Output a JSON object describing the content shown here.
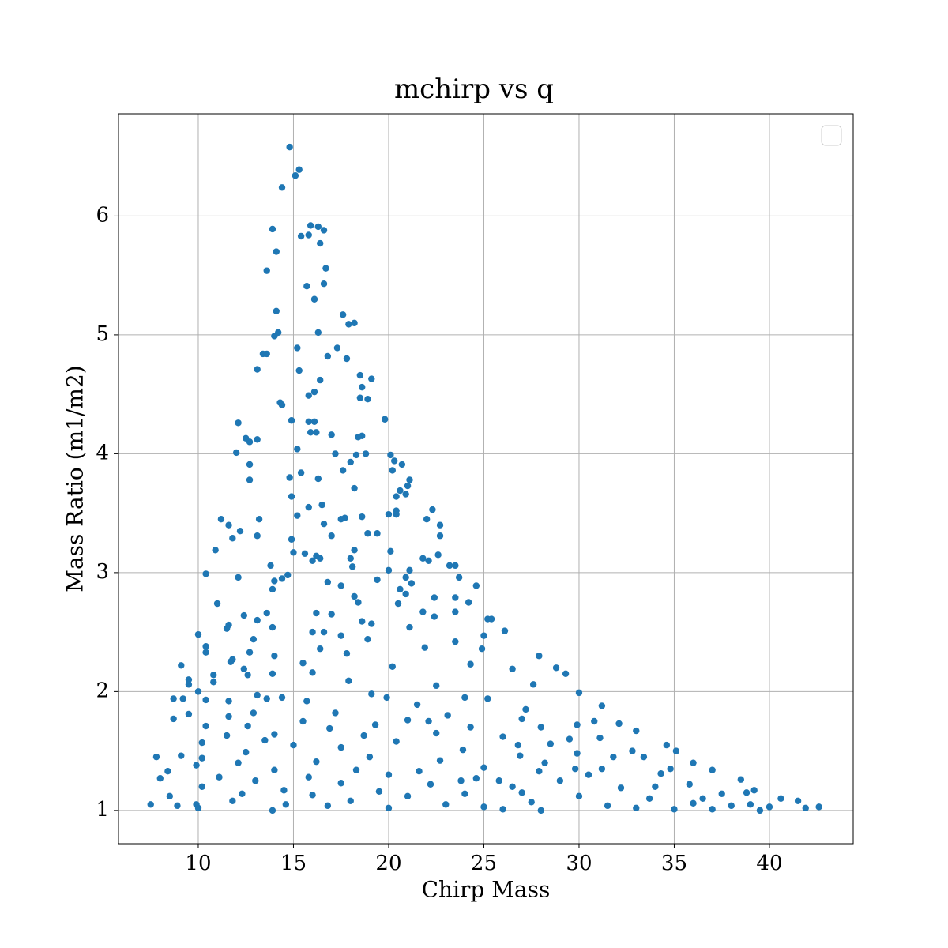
{
  "chart_data": {
    "type": "scatter",
    "title": "mchirp vs q",
    "xlabel": "Chirp Mass",
    "ylabel": "Mass Ratio (m1/m2)",
    "color": "#1f77b4",
    "grid": true,
    "xlim": [
      5.81,
      44.4
    ],
    "ylim": [
      0.72,
      6.86
    ],
    "xticks": [
      10,
      15,
      20,
      25,
      30,
      35,
      40
    ],
    "yticks": [
      1,
      2,
      3,
      4,
      5,
      6
    ],
    "x": [
      14.8,
      15.3,
      15.1,
      14.4,
      13.9,
      15.9,
      16.3,
      16.6,
      15.4,
      15.8,
      16.4,
      14.1,
      16.7,
      13.6,
      16.6,
      15.7,
      16.1,
      14.1,
      17.6,
      18.2,
      17.9,
      16.3,
      14.2,
      14.0,
      15.2,
      17.3,
      17.8,
      16.8,
      13.4,
      13.6,
      13.1,
      15.3,
      18.5,
      19.1,
      16.4,
      18.6,
      16.1,
      15.8,
      18.5,
      18.9,
      14.3,
      14.4,
      19.8,
      14.9,
      15.8,
      16.1,
      12.1,
      16.2,
      15.9,
      17.0,
      18.6,
      18.4,
      12.5,
      13.1,
      12.7,
      12.0,
      17.2,
      18.3,
      18.8,
      15.2,
      20.1,
      20.3,
      18.0,
      20.7,
      12.7,
      20.2,
      15.4,
      17.6,
      14.8,
      16.3,
      12.7,
      21.1,
      21.0,
      18.2,
      20.6,
      20.9,
      14.9,
      20.4,
      16.5,
      22.3,
      15.8,
      20.4,
      17.7,
      17.5,
      18.6,
      20.0,
      20.4,
      13.2,
      22.0,
      11.2,
      11.6,
      22.7,
      16.6,
      15.2,
      12.2,
      18.9,
      19.4,
      22.7,
      17.0,
      11.8,
      13.1,
      14.9,
      18.2,
      10.9,
      20.1,
      15.0,
      15.6,
      16.2,
      21.8,
      22.1,
      16.4,
      18.0,
      16.0,
      22.6,
      18.1,
      20.0,
      21.1,
      13.8,
      23.2,
      23.5,
      10.4,
      20.9,
      14.7,
      23.7,
      12.1,
      14.0,
      19.4,
      16.8,
      21.2,
      17.5,
      24.6,
      14.4,
      20.6,
      13.9,
      20.9,
      18.2,
      22.4,
      23.5,
      24.2,
      18.4,
      20.5,
      13.6,
      23.5,
      16.2,
      21.8,
      11.0,
      17.0,
      12.4,
      18.6,
      25.2,
      25.4,
      13.1,
      22.4,
      19.1,
      11.6,
      13.9,
      11.5,
      16.0,
      26.1,
      21.1,
      16.6,
      17.5,
      10.0,
      25.0,
      12.9,
      18.9,
      23.5,
      21.9,
      10.4,
      10.4,
      24.9,
      16.4,
      12.7,
      17.8,
      14.0,
      27.9,
      11.8,
      11.7,
      15.5,
      24.3,
      9.1,
      20.2,
      12.4,
      26.5,
      28.8,
      13.9,
      16.0,
      10.8,
      12.6,
      9.5,
      17.9,
      9.5,
      10.8,
      22.5,
      27.6,
      29.3,
      19.1,
      10.0,
      13.1,
      30.0,
      13.6,
      8.7,
      9.2,
      14.4,
      19.9,
      10.4,
      25.2,
      15.7,
      11.6,
      21.5,
      31.2,
      9.5,
      12.9,
      17.2,
      23.1,
      8.7,
      11.6,
      21.0,
      27.0,
      32.1,
      15.5,
      19.3,
      10.4,
      29.9,
      12.6,
      16.9,
      22.1,
      24.3,
      33.0,
      14.0,
      11.5,
      18.7,
      26.0,
      31.1,
      13.5,
      20.4,
      28.5,
      34.6,
      10.2,
      15.0,
      17.5,
      23.9,
      35.1,
      12.5,
      29.9,
      19.0,
      26.9,
      9.1,
      7.8,
      10.2,
      22.7,
      33.4,
      16.2,
      36.0,
      12.1,
      9.9,
      25.0,
      31.2,
      14.0,
      18.3,
      21.6,
      27.9,
      37.0,
      8.4,
      20.0,
      34.3,
      11.1,
      15.8,
      24.6,
      38.5,
      8.0,
      13.0,
      29.0,
      17.5,
      22.2,
      35.8,
      10.2,
      26.5,
      32.2,
      39.2,
      14.5,
      19.5,
      12.3,
      24.0,
      37.5,
      16.0,
      30.0,
      8.5,
      21.0,
      33.7,
      40.6,
      11.8,
      18.0,
      27.5,
      36.0,
      41.5,
      9.9,
      14.6,
      23.0,
      31.5,
      38.0,
      7.5,
      16.8,
      25.0,
      40.0,
      42.6,
      10.0,
      13.9,
      20.0,
      28.0,
      35.0,
      41.9,
      8.9,
      26.0,
      33.0,
      37.0,
      39.5,
      26.8,
      28.2,
      29.5,
      30.5,
      32.8,
      34.0,
      36.5,
      38.8,
      27.2,
      30.8,
      24.0,
      25.8,
      28.0,
      31.8,
      34.8,
      22.5,
      23.8,
      27.0,
      29.8,
      39.0
    ],
    "y": [
      6.58,
      6.39,
      6.34,
      6.24,
      5.89,
      5.92,
      5.91,
      5.88,
      5.83,
      5.84,
      5.77,
      5.7,
      5.56,
      5.54,
      5.43,
      5.41,
      5.3,
      5.2,
      5.17,
      5.1,
      5.09,
      5.02,
      5.02,
      4.99,
      4.89,
      4.89,
      4.8,
      4.82,
      4.84,
      4.84,
      4.71,
      4.7,
      4.66,
      4.63,
      4.62,
      4.56,
      4.52,
      4.49,
      4.47,
      4.46,
      4.43,
      4.41,
      4.29,
      4.28,
      4.27,
      4.27,
      4.26,
      4.18,
      4.18,
      4.16,
      4.15,
      4.14,
      4.13,
      4.12,
      4.1,
      4.01,
      4.0,
      3.99,
      4.0,
      4.04,
      3.99,
      3.94,
      3.93,
      3.91,
      3.91,
      3.86,
      3.84,
      3.86,
      3.8,
      3.79,
      3.78,
      3.78,
      3.73,
      3.71,
      3.69,
      3.66,
      3.64,
      3.64,
      3.57,
      3.53,
      3.55,
      3.52,
      3.46,
      3.45,
      3.47,
      3.49,
      3.49,
      3.45,
      3.45,
      3.45,
      3.4,
      3.4,
      3.41,
      3.48,
      3.35,
      3.33,
      3.33,
      3.31,
      3.31,
      3.29,
      3.31,
      3.28,
      3.19,
      3.19,
      3.18,
      3.17,
      3.16,
      3.14,
      3.12,
      3.1,
      3.12,
      3.12,
      3.1,
      3.15,
      3.05,
      3.02,
      3.02,
      3.06,
      3.06,
      3.06,
      2.99,
      2.96,
      2.98,
      2.96,
      2.96,
      2.93,
      2.94,
      2.92,
      2.91,
      2.89,
      2.89,
      2.95,
      2.86,
      2.86,
      2.82,
      2.8,
      2.79,
      2.79,
      2.75,
      2.75,
      2.74,
      2.66,
      2.67,
      2.66,
      2.67,
      2.74,
      2.65,
      2.64,
      2.59,
      2.61,
      2.61,
      2.6,
      2.63,
      2.57,
      2.56,
      2.54,
      2.53,
      2.5,
      2.51,
      2.54,
      2.5,
      2.47,
      2.48,
      2.47,
      2.44,
      2.44,
      2.42,
      2.37,
      2.38,
      2.33,
      2.36,
      2.36,
      2.33,
      2.32,
      2.3,
      2.3,
      2.27,
      2.25,
      2.24,
      2.23,
      2.22,
      2.21,
      2.19,
      2.19,
      2.2,
      2.15,
      2.16,
      2.14,
      2.14,
      2.1,
      2.09,
      2.06,
      2.08,
      2.05,
      2.06,
      2.15,
      1.98,
      2.0,
      1.97,
      1.99,
      1.94,
      1.94,
      1.94,
      1.95,
      1.95,
      1.93,
      1.94,
      1.92,
      1.92,
      1.89,
      1.88,
      1.81,
      1.82,
      1.82,
      1.8,
      1.77,
      1.79,
      1.76,
      1.77,
      1.73,
      1.75,
      1.72,
      1.71,
      1.72,
      1.71,
      1.69,
      1.75,
      1.7,
      1.67,
      1.64,
      1.63,
      1.63,
      1.62,
      1.61,
      1.59,
      1.58,
      1.56,
      1.55,
      1.57,
      1.55,
      1.53,
      1.51,
      1.5,
      1.49,
      1.48,
      1.45,
      1.46,
      1.46,
      1.45,
      1.44,
      1.42,
      1.45,
      1.41,
      1.4,
      1.4,
      1.38,
      1.36,
      1.35,
      1.34,
      1.34,
      1.33,
      1.33,
      1.34,
      1.33,
      1.3,
      1.31,
      1.28,
      1.28,
      1.27,
      1.26,
      1.27,
      1.25,
      1.25,
      1.23,
      1.22,
      1.22,
      1.2,
      1.2,
      1.19,
      1.17,
      1.17,
      1.16,
      1.14,
      1.14,
      1.14,
      1.13,
      1.12,
      1.12,
      1.12,
      1.1,
      1.1,
      1.08,
      1.08,
      1.07,
      1.06,
      1.08,
      1.05,
      1.05,
      1.05,
      1.04,
      1.04,
      1.05,
      1.04,
      1.03,
      1.03,
      1.03,
      1.02,
      1.0,
      1.02,
      1.0,
      1.01,
      1.02,
      1.04,
      1.01,
      1.02,
      1.01,
      1.0,
      1.55,
      1.4,
      1.6,
      1.3,
      1.5,
      1.2,
      1.1,
      1.15,
      1.85,
      1.75,
      1.95,
      1.25,
      1.7,
      1.45,
      1.35,
      1.65,
      1.25,
      1.15,
      1.35,
      1.05
    ]
  }
}
